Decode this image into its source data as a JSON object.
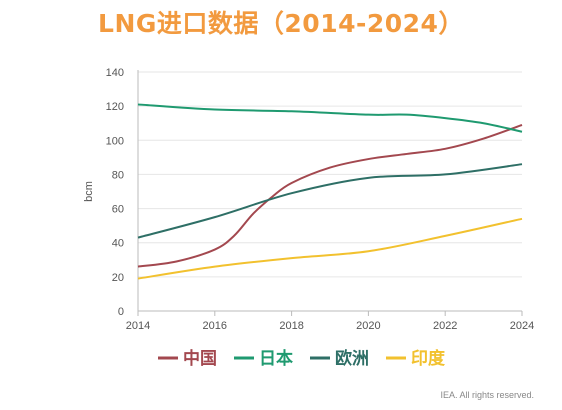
{
  "chart_data": {
    "type": "line",
    "title": "LNG进口数据（2014-2024）",
    "ylabel": "bcm",
    "xlabel": "",
    "ylim": [
      0,
      140
    ],
    "xlim": [
      2014,
      2024
    ],
    "yticks": [
      0,
      20,
      40,
      60,
      80,
      100,
      120,
      140
    ],
    "xticks": [
      2014,
      2016,
      2018,
      2020,
      2022,
      2024
    ],
    "grid": "horizontal",
    "legend": "bottom",
    "series": [
      {
        "name": "中国",
        "color": "#a3484f",
        "x": [
          2014,
          2015,
          2016,
          2016.5,
          2017,
          2017.5,
          2018,
          2019,
          2020,
          2021,
          2022,
          2023,
          2024
        ],
        "y": [
          26,
          29,
          36,
          44,
          57,
          67,
          75,
          84,
          89,
          92,
          95,
          101,
          109
        ]
      },
      {
        "name": "日本",
        "color": "#1f9a70",
        "x": [
          2014,
          2016,
          2018,
          2020,
          2021,
          2022,
          2023,
          2024
        ],
        "y": [
          121,
          118,
          117,
          115,
          115,
          113,
          110,
          105
        ]
      },
      {
        "name": "欧洲",
        "color": "#2e6f66",
        "x": [
          2014,
          2016,
          2018,
          2020,
          2022,
          2024
        ],
        "y": [
          43,
          55,
          69,
          78,
          80,
          86
        ]
      },
      {
        "name": "印度",
        "color": "#f2c12e",
        "x": [
          2014,
          2016,
          2018,
          2020,
          2022,
          2024
        ],
        "y": [
          19,
          26,
          31,
          35,
          44,
          54
        ]
      }
    ]
  },
  "credit": "IEA. All rights reserved."
}
